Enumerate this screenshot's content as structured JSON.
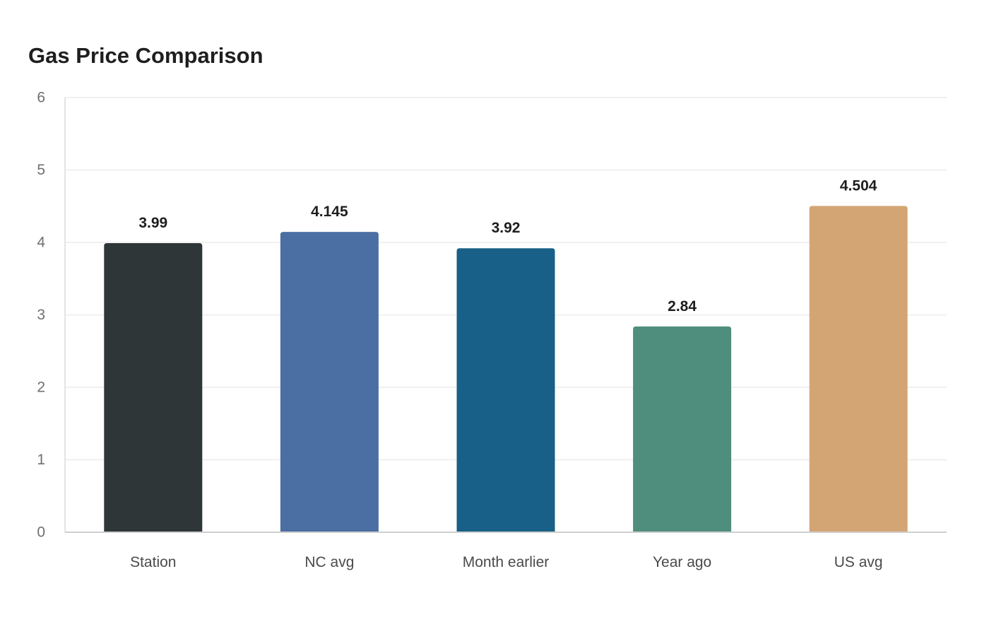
{
  "chart_data": {
    "type": "bar",
    "title": "Gas Price Comparison",
    "xlabel": "",
    "ylabel": "",
    "categories": [
      "Station",
      "NC avg",
      "Month earlier",
      "Year ago",
      "US avg"
    ],
    "values": [
      3.99,
      4.145,
      3.92,
      2.84,
      4.504
    ],
    "value_labels": [
      "3.99",
      "4.145",
      "3.92",
      "2.84",
      "4.504"
    ],
    "colors": [
      "#2e3638",
      "#4b6ea3",
      "#186087",
      "#4f8e7c",
      "#d4a574"
    ],
    "ylim": [
      0,
      6
    ],
    "yticks": [
      0,
      1,
      2,
      3,
      4,
      5,
      6
    ],
    "grid": true,
    "legend": "none"
  }
}
